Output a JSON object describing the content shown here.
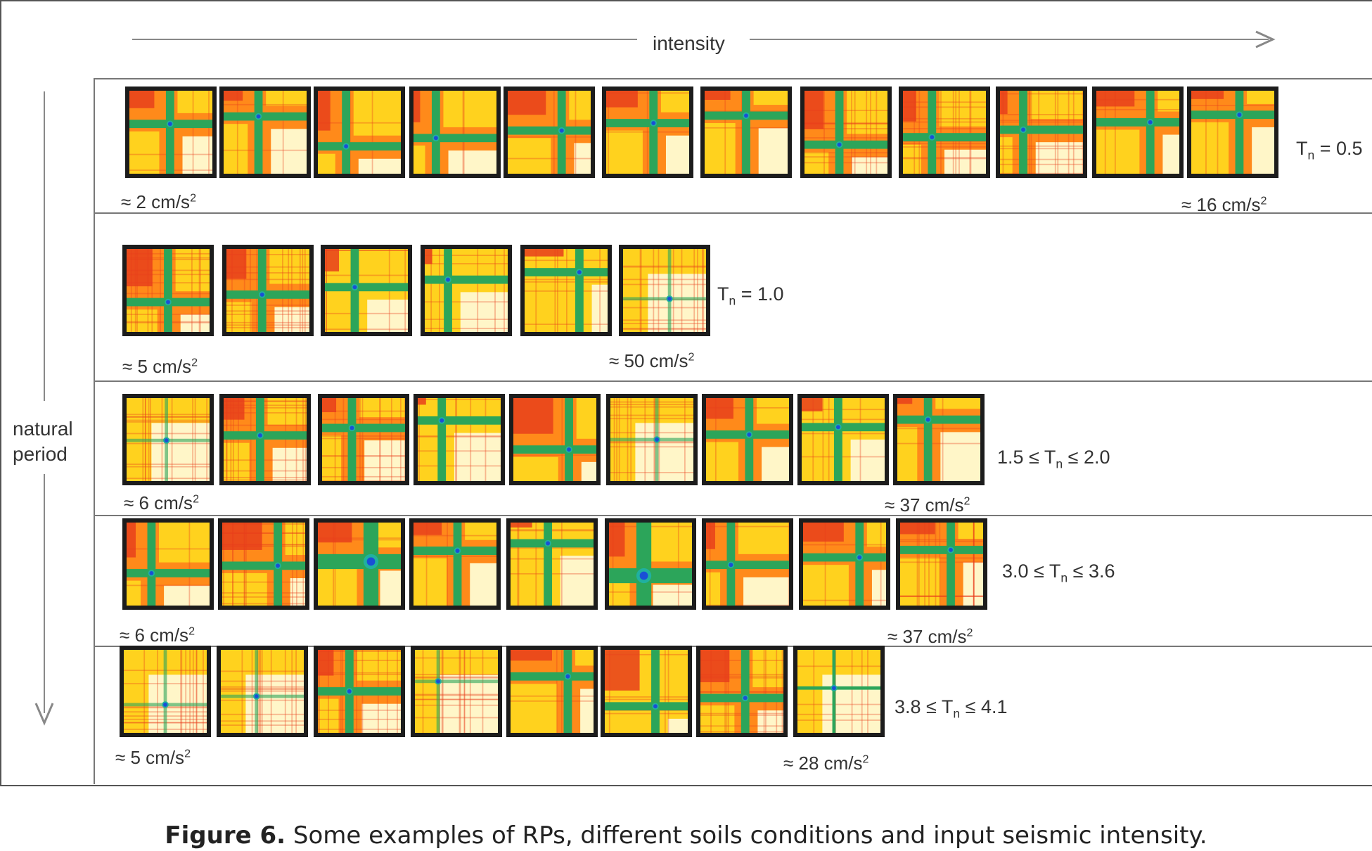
{
  "figure": {
    "x_axis_label": "intensity",
    "y_axis_label_line1": "natural",
    "y_axis_label_line2": "period"
  },
  "rows": [
    {
      "period_prefix": "T",
      "period_sub": "n",
      "period_suffix": " = 0.5",
      "min_label": "≈ 2 cm/s",
      "max_label": "≈ 16 cm/s",
      "plot_count": 12,
      "plots": [
        {
          "variant": "a",
          "seed": 1
        },
        {
          "variant": "b",
          "seed": 2
        },
        {
          "variant": "c",
          "seed": 3
        },
        {
          "variant": "b",
          "seed": 4
        },
        {
          "variant": "c",
          "seed": 5
        },
        {
          "variant": "a",
          "seed": 6
        },
        {
          "variant": "b",
          "seed": 7
        },
        {
          "variant": "d",
          "seed": 8
        },
        {
          "variant": "d",
          "seed": 9
        },
        {
          "variant": "d",
          "seed": 10
        },
        {
          "variant": "c",
          "seed": 11
        },
        {
          "variant": "a",
          "seed": 12
        }
      ]
    },
    {
      "period_prefix": "T",
      "period_sub": "n",
      "period_suffix": " = 1.0",
      "min_label": "≈ 5 cm/s",
      "max_label": "≈ 50 cm/s",
      "plot_count": 6,
      "plots": [
        {
          "variant": "d",
          "seed": 13
        },
        {
          "variant": "d",
          "seed": 14
        },
        {
          "variant": "e",
          "seed": 15
        },
        {
          "variant": "e",
          "seed": 16
        },
        {
          "variant": "e",
          "seed": 17
        },
        {
          "variant": "f",
          "seed": 18
        }
      ]
    },
    {
      "period_prefix": "1.5 ≤ T",
      "period_sub": "n",
      "period_suffix": " ≤ 2.0",
      "min_label": "≈ 6 cm/s",
      "max_label": "≈ 37 cm/s",
      "plot_count": 9,
      "plots": [
        {
          "variant": "f",
          "seed": 19
        },
        {
          "variant": "d",
          "seed": 20
        },
        {
          "variant": "d",
          "seed": 21
        },
        {
          "variant": "e",
          "seed": 22
        },
        {
          "variant": "c",
          "seed": 23
        },
        {
          "variant": "f",
          "seed": 24
        },
        {
          "variant": "a",
          "seed": 25
        },
        {
          "variant": "e",
          "seed": 26
        },
        {
          "variant": "b",
          "seed": 27
        }
      ]
    },
    {
      "period_prefix": "3.0 ≤ T",
      "period_sub": "n",
      "period_suffix": " ≤ 3.6",
      "min_label": "≈ 6 cm/s",
      "max_label": "≈ 37 cm/s",
      "plot_count": 9,
      "plots": [
        {
          "variant": "a",
          "seed": 28
        },
        {
          "variant": "d",
          "seed": 29
        },
        {
          "variant": "g",
          "seed": 30
        },
        {
          "variant": "b",
          "seed": 31
        },
        {
          "variant": "e",
          "seed": 32
        },
        {
          "variant": "g",
          "seed": 33
        },
        {
          "variant": "a",
          "seed": 34
        },
        {
          "variant": "b",
          "seed": 35
        },
        {
          "variant": "d",
          "seed": 36
        }
      ]
    },
    {
      "period_prefix": "3.8 ≤ T",
      "period_sub": "n",
      "period_suffix": " ≤ 4.1",
      "min_label": "≈ 5 cm/s",
      "max_label": "≈ 28 cm/s",
      "plot_count": 8,
      "plots": [
        {
          "variant": "f",
          "seed": 37
        },
        {
          "variant": "f",
          "seed": 38
        },
        {
          "variant": "d",
          "seed": 39
        },
        {
          "variant": "f",
          "seed": 40
        },
        {
          "variant": "b",
          "seed": 41
        },
        {
          "variant": "e",
          "seed": 42
        },
        {
          "variant": "d",
          "seed": 43
        },
        {
          "variant": "h",
          "seed": 44
        }
      ]
    }
  ],
  "units_superscript": "2",
  "caption": {
    "label": "Figure 6.",
    "text": " Some examples of RPs, different soils conditions and input seismic intensity."
  },
  "colors": {
    "frame": "#1c1c1c",
    "yellow_light": "#fff6c8",
    "yellow": "#ffd21e",
    "orange": "#ff8a1a",
    "red": "#e8401c",
    "green": "#2ca55a",
    "teal": "#20b0a0",
    "blue": "#1a4fd6"
  }
}
